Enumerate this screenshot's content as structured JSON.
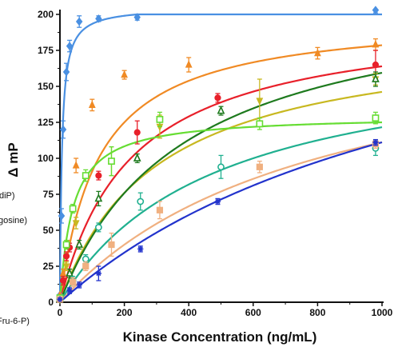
{
  "chart_data": {
    "type": "line",
    "title": "",
    "xlabel": "Kinase Concentration (ng/mL)",
    "ylabel": "Δ mP",
    "xlim": [
      0,
      1000
    ],
    "ylim": [
      0,
      200
    ],
    "x_ticks": [
      "0",
      "200",
      "400",
      "600",
      "800",
      "1000"
    ],
    "y_ticks": [
      "0",
      "25",
      "50",
      "75",
      "100",
      "125",
      "150",
      "175",
      "200"
    ],
    "grid": false,
    "legend_fragments": [
      "diP)",
      "gosine)",
      "Fru-6-P)"
    ],
    "series": [
      {
        "color": "#4a90e2",
        "marker": "diamond",
        "fit": {
          "bmax": 205,
          "kd": 6
        },
        "points": [
          [
            0,
            5
          ],
          [
            5,
            60
          ],
          [
            10,
            120
          ],
          [
            20,
            160
          ],
          [
            30,
            178
          ],
          [
            60,
            195
          ],
          [
            120,
            197
          ],
          [
            240,
            198
          ],
          [
            980,
            203
          ]
        ],
        "errors": [
          0,
          5,
          6,
          6,
          4,
          4,
          2,
          2,
          2
        ]
      },
      {
        "color": "#f08a24",
        "marker": "triangle",
        "fit": {
          "bmax": 200,
          "kd": 120
        },
        "points": [
          [
            0,
            5
          ],
          [
            10,
            20
          ],
          [
            25,
            40
          ],
          [
            50,
            95
          ],
          [
            100,
            137
          ],
          [
            200,
            158
          ],
          [
            400,
            165
          ],
          [
            800,
            173
          ],
          [
            980,
            179
          ]
        ],
        "errors": [
          0,
          3,
          3,
          5,
          4,
          3,
          5,
          4,
          4
        ]
      },
      {
        "color": "#e8202a",
        "marker": "circle",
        "fit": {
          "bmax": 200,
          "kd": 220
        },
        "points": [
          [
            0,
            3
          ],
          [
            10,
            15
          ],
          [
            20,
            32
          ],
          [
            30,
            38
          ],
          [
            120,
            88
          ],
          [
            240,
            118
          ],
          [
            490,
            142
          ],
          [
            980,
            165
          ]
        ],
        "errors": [
          0,
          3,
          3,
          3,
          3,
          8,
          3,
          10
        ]
      },
      {
        "color": "#c8b820",
        "marker": "triangle-down",
        "fit": {
          "bmax": 190,
          "kd": 300
        },
        "points": [
          [
            0,
            2
          ],
          [
            20,
            25
          ],
          [
            50,
            55
          ],
          [
            160,
            98
          ],
          [
            310,
            122
          ],
          [
            620,
            140
          ],
          [
            980,
            155
          ]
        ],
        "errors": [
          0,
          3,
          4,
          10,
          8,
          15,
          4
        ]
      },
      {
        "color": "#1e7a1e",
        "marker": "triangle-open",
        "fit": {
          "bmax": 220,
          "kd": 380
        },
        "points": [
          [
            0,
            2
          ],
          [
            30,
            20
          ],
          [
            60,
            40
          ],
          [
            120,
            72
          ],
          [
            240,
            100
          ],
          [
            500,
            133
          ],
          [
            980,
            155
          ]
        ],
        "errors": [
          0,
          3,
          3,
          5,
          3,
          3,
          5
        ]
      },
      {
        "color": "#66dd33",
        "marker": "square-open",
        "fit": {
          "bmax": 130,
          "kd": 40
        },
        "points": [
          [
            0,
            3
          ],
          [
            20,
            40
          ],
          [
            40,
            65
          ],
          [
            80,
            88
          ],
          [
            160,
            98
          ],
          [
            310,
            127
          ],
          [
            620,
            124
          ],
          [
            980,
            128
          ]
        ],
        "errors": [
          0,
          3,
          3,
          4,
          10,
          5,
          4,
          4
        ]
      },
      {
        "color": "#20b090",
        "marker": "circle-open",
        "fit": {
          "bmax": 180,
          "kd": 480
        },
        "points": [
          [
            0,
            2
          ],
          [
            40,
            15
          ],
          [
            80,
            30
          ],
          [
            120,
            52
          ],
          [
            250,
            70
          ],
          [
            500,
            94
          ],
          [
            980,
            107
          ]
        ],
        "errors": [
          0,
          3,
          3,
          3,
          6,
          8,
          5
        ]
      },
      {
        "color": "#f0b080",
        "marker": "square",
        "fit": {
          "bmax": 200,
          "kd": 800
        },
        "points": [
          [
            0,
            2
          ],
          [
            40,
            14
          ],
          [
            80,
            25
          ],
          [
            160,
            40
          ],
          [
            310,
            64
          ],
          [
            620,
            94
          ],
          [
            980,
            110
          ]
        ],
        "errors": [
          0,
          3,
          3,
          8,
          6,
          4,
          3
        ]
      },
      {
        "color": "#2233cc",
        "marker": "star",
        "fit": {
          "bmax": 250,
          "kd": 1250
        },
        "points": [
          [
            0,
            2
          ],
          [
            30,
            8
          ],
          [
            60,
            12
          ],
          [
            120,
            20
          ],
          [
            250,
            37
          ],
          [
            490,
            70
          ],
          [
            980,
            111
          ]
        ],
        "errors": [
          0,
          2,
          2,
          5,
          2,
          2,
          2
        ]
      }
    ]
  }
}
